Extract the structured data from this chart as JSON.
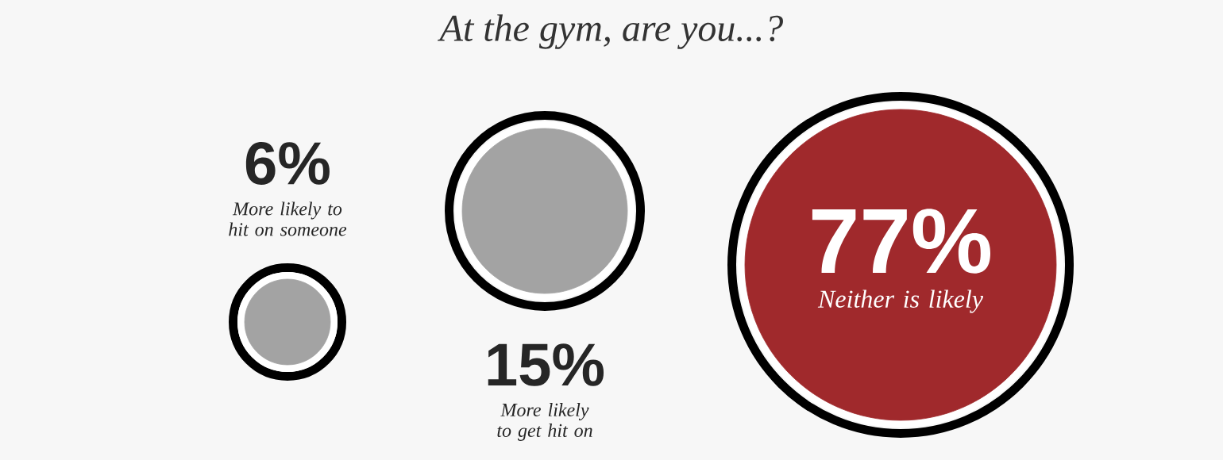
{
  "chart_data": {
    "type": "other",
    "title": "At the gym, are you...?",
    "categories": [
      "More likely to hit on someone",
      "More likely to get hit on",
      "Neither is likely"
    ],
    "values": [
      6,
      15,
      77
    ],
    "value_labels": [
      "6%",
      "15%",
      "77%"
    ],
    "colors": [
      "#a3a3a3",
      "#a3a3a3",
      "#a0292c"
    ]
  }
}
